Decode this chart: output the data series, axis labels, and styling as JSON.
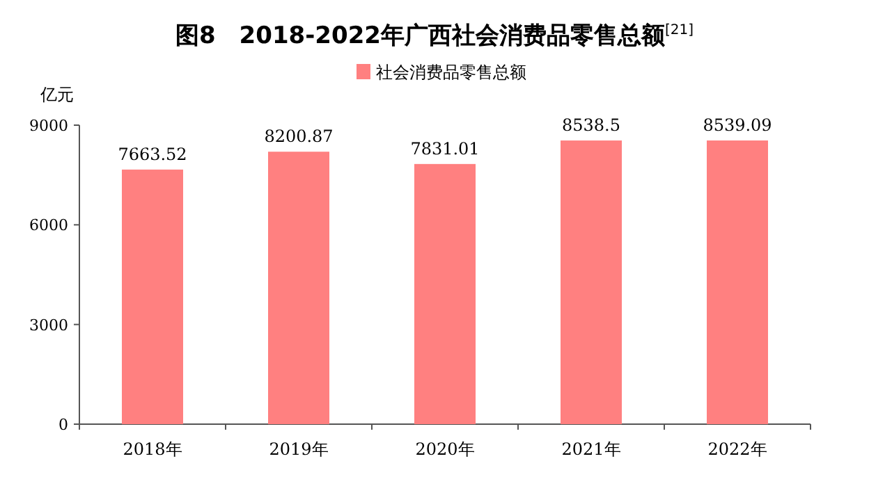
{
  "chart_data": {
    "type": "bar",
    "title": "图8　2018-2022年广西社会消费品零售总额$^{[21]}$",
    "ylabel": "亿元",
    "categories": [
      "2018年",
      "2019年",
      "2020年",
      "2021年",
      "2022年"
    ],
    "series": [
      {
        "name": "社会消费品零售总额",
        "color": "#ff8080",
        "values": [
          7663.52,
          8200.87,
          7831.01,
          8538.5,
          8539.09
        ]
      }
    ],
    "ylim": [
      0,
      9000
    ],
    "yticks": [
      0,
      3000,
      6000,
      9000
    ],
    "grid": false,
    "legend": "top",
    "data_labels": true
  }
}
